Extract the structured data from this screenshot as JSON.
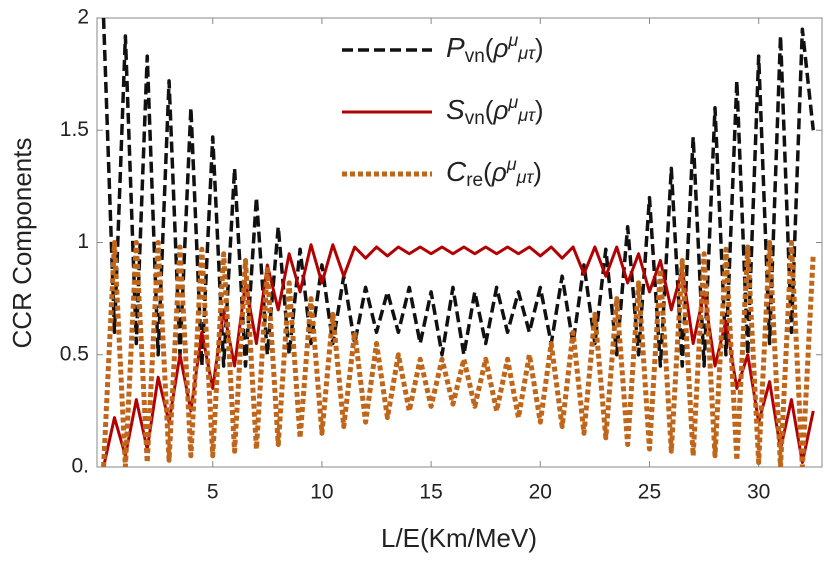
{
  "chart_data": {
    "type": "line",
    "xlabel": "L/E(Km/MeV)",
    "ylabel": "CCR Components",
    "xlim": [
      -0.3,
      32.9
    ],
    "ylim": [
      0,
      2
    ],
    "xticks": [
      5,
      10,
      15,
      20,
      25,
      30
    ],
    "yticks": [
      {
        "value": 0,
        "label": "0."
      },
      0.5,
      1,
      1.5,
      2
    ],
    "x": [
      0,
      0.5,
      1,
      1.5,
      2,
      2.5,
      3,
      3.5,
      4,
      4.5,
      5,
      5.5,
      6,
      6.5,
      7,
      7.5,
      8,
      8.5,
      9,
      9.5,
      10,
      10.5,
      11,
      11.5,
      12,
      12.5,
      13,
      13.5,
      14,
      14.5,
      15,
      15.5,
      16,
      16.5,
      17,
      17.5,
      18,
      18.5,
      19,
      19.5,
      20,
      20.5,
      21,
      21.5,
      22,
      22.5,
      23,
      23.5,
      24,
      24.5,
      25,
      25.5,
      26,
      26.5,
      27,
      27.5,
      28,
      28.5,
      29,
      29.5,
      30,
      30.5,
      31,
      31.5,
      32,
      32.5
    ],
    "series": [
      {
        "name": "Pvn(ρμμτ)",
        "color": "#111111",
        "dash": "dashed",
        "values": [
          2.0,
          0.6,
          1.92,
          0.55,
          1.83,
          0.5,
          1.72,
          0.5,
          1.6,
          0.45,
          1.47,
          0.45,
          1.33,
          0.45,
          1.2,
          0.5,
          1.07,
          0.5,
          0.97,
          0.55,
          0.9,
          0.55,
          0.85,
          0.55,
          0.8,
          0.6,
          0.78,
          0.6,
          0.8,
          0.55,
          0.78,
          0.5,
          0.8,
          0.5,
          0.78,
          0.55,
          0.8,
          0.6,
          0.78,
          0.6,
          0.8,
          0.55,
          0.85,
          0.55,
          0.9,
          0.55,
          0.97,
          0.5,
          1.07,
          0.5,
          1.2,
          0.45,
          1.33,
          0.45,
          1.47,
          0.45,
          1.6,
          0.5,
          1.72,
          0.5,
          1.83,
          0.55,
          1.92,
          0.6,
          1.95,
          1.5
        ]
      },
      {
        "name": "Svn(ρμμτ)",
        "color": "#b30000",
        "dash": "solid",
        "values": [
          0.0,
          0.22,
          0.05,
          0.3,
          0.08,
          0.4,
          0.2,
          0.5,
          0.25,
          0.6,
          0.35,
          0.7,
          0.45,
          0.82,
          0.55,
          0.9,
          0.7,
          0.95,
          0.78,
          0.99,
          0.82,
          0.99,
          0.85,
          0.98,
          0.93,
          0.98,
          0.94,
          0.98,
          0.95,
          0.98,
          0.95,
          0.98,
          0.95,
          0.98,
          0.95,
          0.98,
          0.95,
          0.98,
          0.95,
          0.98,
          0.94,
          0.98,
          0.93,
          0.98,
          0.86,
          0.98,
          0.85,
          0.98,
          0.82,
          0.95,
          0.78,
          0.92,
          0.7,
          0.88,
          0.55,
          0.78,
          0.45,
          0.65,
          0.35,
          0.5,
          0.2,
          0.38,
          0.08,
          0.3,
          0.02,
          0.25
        ]
      },
      {
        "name": "Cre(ρμμτ)",
        "color": "#c0661a",
        "dash": "dotted",
        "values": [
          0.0,
          1.0,
          0.0,
          1.0,
          0.02,
          1.0,
          0.03,
          0.98,
          0.05,
          0.97,
          0.05,
          0.95,
          0.07,
          0.92,
          0.08,
          0.88,
          0.1,
          0.82,
          0.13,
          0.75,
          0.15,
          0.68,
          0.18,
          0.6,
          0.2,
          0.55,
          0.22,
          0.5,
          0.25,
          0.48,
          0.27,
          0.48,
          0.28,
          0.48,
          0.27,
          0.48,
          0.25,
          0.48,
          0.22,
          0.5,
          0.2,
          0.55,
          0.18,
          0.6,
          0.15,
          0.68,
          0.13,
          0.75,
          0.1,
          0.82,
          0.08,
          0.88,
          0.07,
          0.92,
          0.05,
          0.95,
          0.05,
          0.97,
          0.03,
          0.98,
          0.02,
          1.0,
          0.0,
          1.0,
          0.0,
          0.95
        ]
      }
    ]
  }
}
